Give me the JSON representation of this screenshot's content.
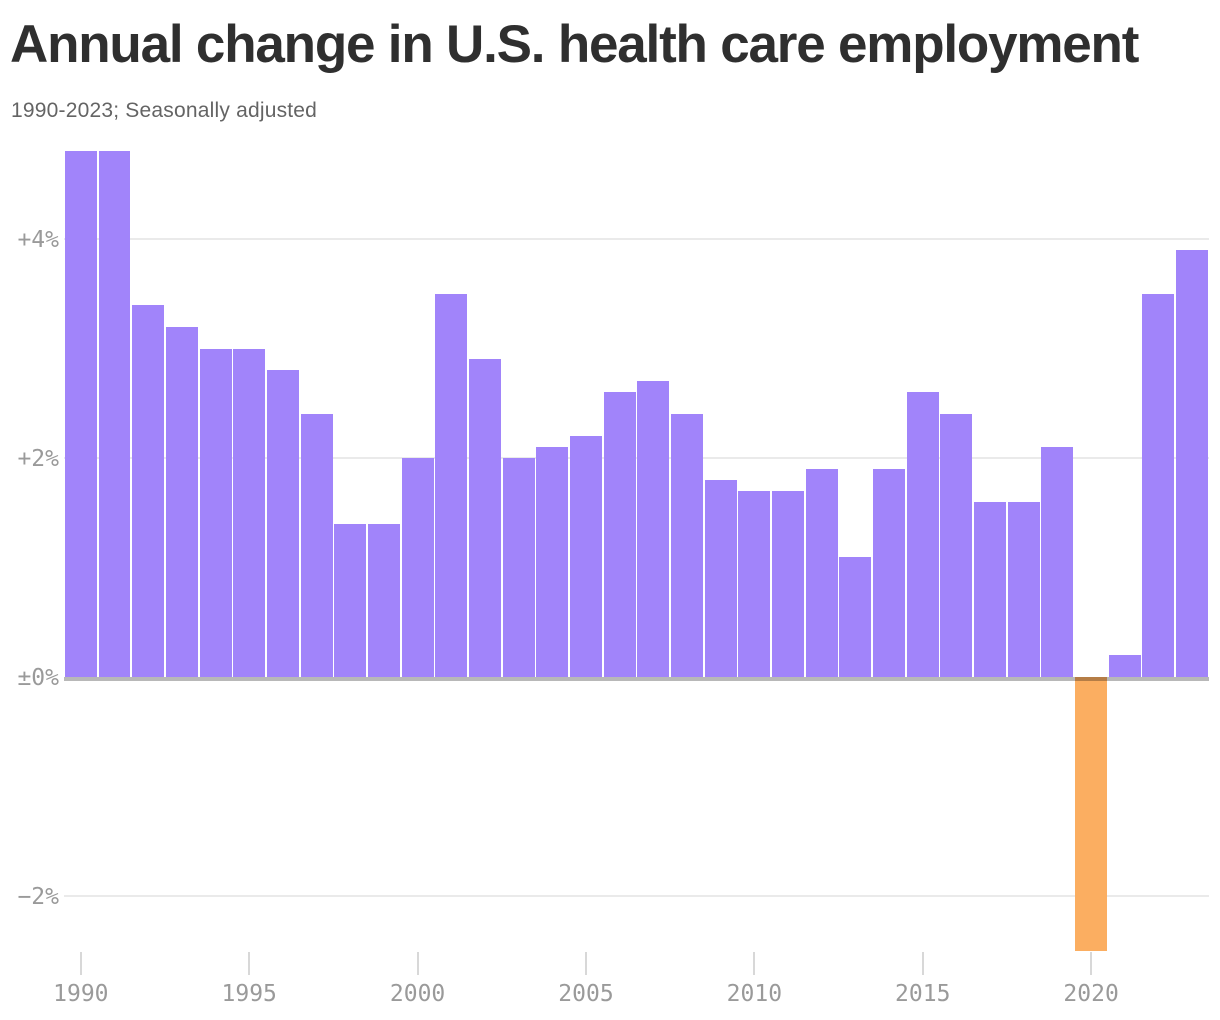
{
  "header": {
    "title": "Annual change in U.S. health care employment",
    "subtitle": "1990-2023; Seasonally adjusted"
  },
  "chart_data": {
    "type": "bar",
    "title": "Annual change in U.S. health care employment",
    "subtitle": "1990-2023; Seasonally adjusted",
    "unit": "%",
    "categories": [
      1990,
      1991,
      1992,
      1993,
      1994,
      1995,
      1996,
      1997,
      1998,
      1999,
      2000,
      2001,
      2002,
      2003,
      2004,
      2005,
      2006,
      2007,
      2008,
      2009,
      2010,
      2011,
      2012,
      2013,
      2014,
      2015,
      2016,
      2017,
      2018,
      2019,
      2020,
      2021,
      2022,
      2023
    ],
    "values": [
      4.8,
      4.8,
      3.4,
      3.2,
      3.0,
      3.0,
      2.8,
      2.4,
      1.4,
      1.4,
      2.0,
      3.5,
      2.9,
      2.0,
      2.1,
      2.2,
      2.6,
      2.7,
      2.4,
      1.8,
      1.7,
      1.7,
      1.9,
      1.1,
      1.9,
      2.6,
      2.4,
      1.6,
      1.6,
      2.1,
      -2.5,
      0.2,
      3.5,
      3.9
    ],
    "y_ticks": [
      "+4%",
      "+2%",
      "±0%",
      "−2%"
    ],
    "y_tick_values": [
      4,
      2,
      0,
      -2
    ],
    "x_ticks": [
      1990,
      1995,
      2000,
      2005,
      2010,
      2015,
      2020
    ],
    "ylim": [
      -2.6,
      4.83
    ],
    "grid": true,
    "legend": false,
    "bar_color": "#a184fa",
    "negative_bar_color": "#fbae61",
    "gridline_color": "#eaeaea",
    "axis_label_color": "#9a9a9a"
  }
}
